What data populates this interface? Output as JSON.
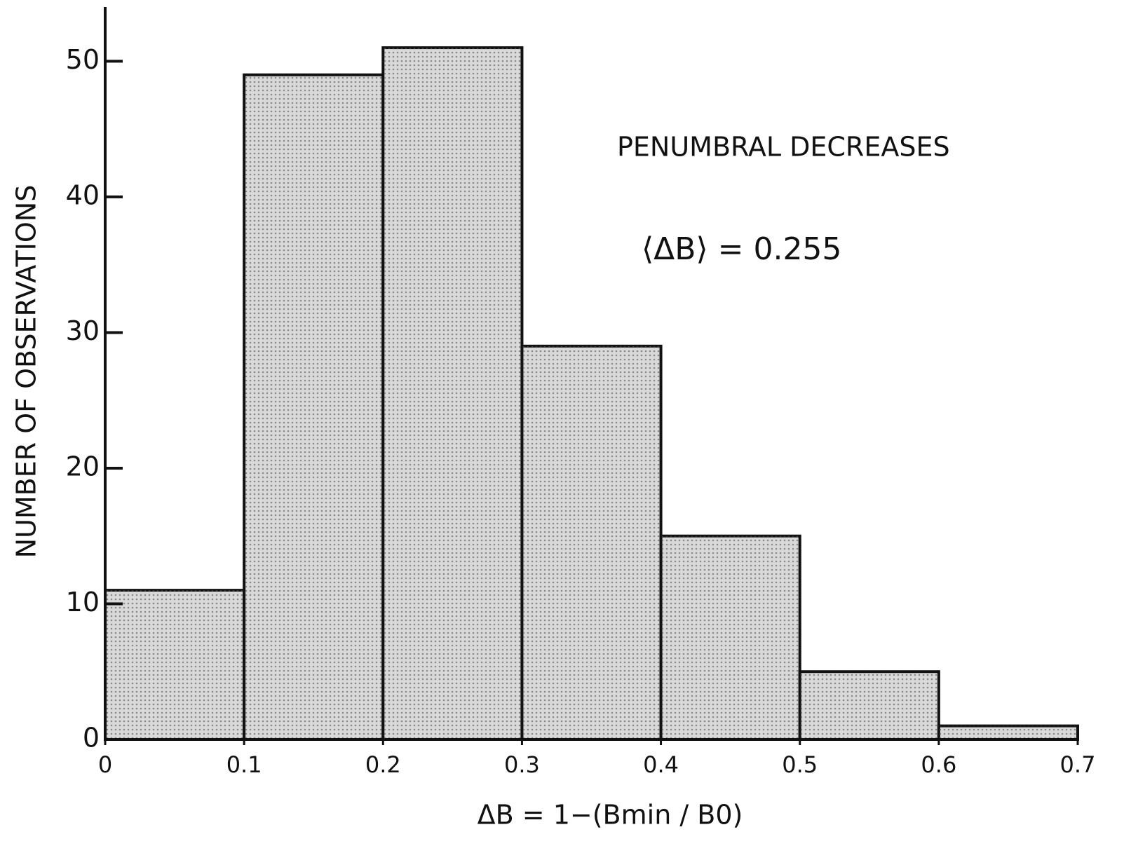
{
  "chart_data": {
    "type": "histogram",
    "bins": [
      0,
      0.1,
      0.2,
      0.3,
      0.4,
      0.5,
      0.6,
      0.7
    ],
    "values": [
      11,
      49,
      51,
      29,
      15,
      5,
      1
    ],
    "color": "#d9d9d9",
    "xlim": [
      0,
      0.7
    ],
    "xticks": [
      0,
      0.1,
      0.2,
      0.3,
      0.4,
      0.5,
      0.6,
      0.7
    ],
    "ylim": [
      0,
      54
    ],
    "yticks": [
      0,
      10,
      20,
      30,
      40,
      50
    ],
    "xlabel": "ΔB = 1−(Bmin / B0)",
    "ylabel": "NUMBER OF OBSERVATIONS",
    "annotations": [
      "PENUMBRAL DECREASES",
      "⟨ΔB⟩ = 0.255"
    ],
    "grid": false
  }
}
